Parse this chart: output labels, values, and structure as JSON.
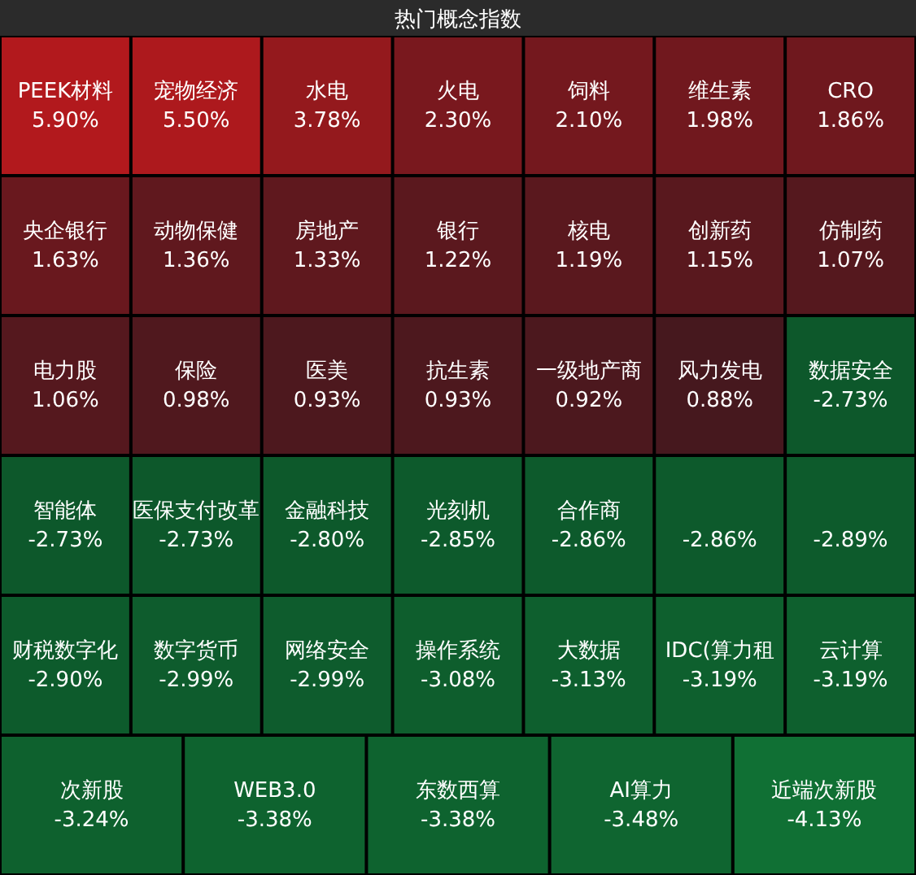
{
  "chart_data": {
    "type": "other",
    "title": "热门概念指数",
    "categories": [
      "PEEK材料",
      "宠物经济",
      "水电",
      "火电",
      "饲料",
      "维生素",
      "CRO",
      "央企银行",
      "动物保健",
      "房地产",
      "银行",
      "核电",
      "创新药",
      "仿制药",
      "电力股",
      "保险",
      "医美",
      "抗生素",
      "一级地产商",
      "风力发电",
      "数据安全",
      "智能体",
      "医保支付改革",
      "金融科技",
      "光刻机",
      "合作商",
      null,
      null,
      "财税数字化",
      "数字货币",
      "网络安全",
      "操作系统",
      "大数据",
      "IDC(算力租",
      "云计算",
      "次新股",
      "WEB3.0",
      "东数西算",
      "AI算力",
      "近端次新股"
    ],
    "values": [
      5.9,
      5.5,
      3.78,
      2.3,
      2.1,
      1.98,
      1.86,
      1.63,
      1.36,
      1.33,
      1.22,
      1.19,
      1.15,
      1.07,
      1.06,
      0.98,
      0.93,
      0.93,
      0.92,
      0.88,
      -2.73,
      -2.73,
      -2.73,
      -2.8,
      -2.85,
      -2.86,
      -2.86,
      -2.89,
      -2.9,
      -2.99,
      -2.99,
      -3.08,
      -3.13,
      -3.19,
      -3.19,
      -3.24,
      -3.38,
      -3.38,
      -3.48,
      -4.13
    ],
    "value_labels": [
      "5.90%",
      "5.50%",
      "3.78%",
      "2.30%",
      "2.10%",
      "1.98%",
      "1.86%",
      "1.63%",
      "1.36%",
      "1.33%",
      "1.22%",
      "1.19%",
      "1.15%",
      "1.07%",
      "1.06%",
      "0.98%",
      "0.93%",
      "0.93%",
      "0.92%",
      "0.88%",
      "-2.73%",
      "-2.73%",
      "-2.73%",
      "-2.80%",
      "-2.85%",
      "-2.86%",
      "-2.86%",
      "-2.89%",
      "-2.90%",
      "-2.99%",
      "-2.99%",
      "-3.08%",
      "-3.13%",
      "-3.19%",
      "-3.19%",
      "-3.24%",
      "-3.38%",
      "-3.38%",
      "-3.48%",
      "-4.13%"
    ]
  }
}
